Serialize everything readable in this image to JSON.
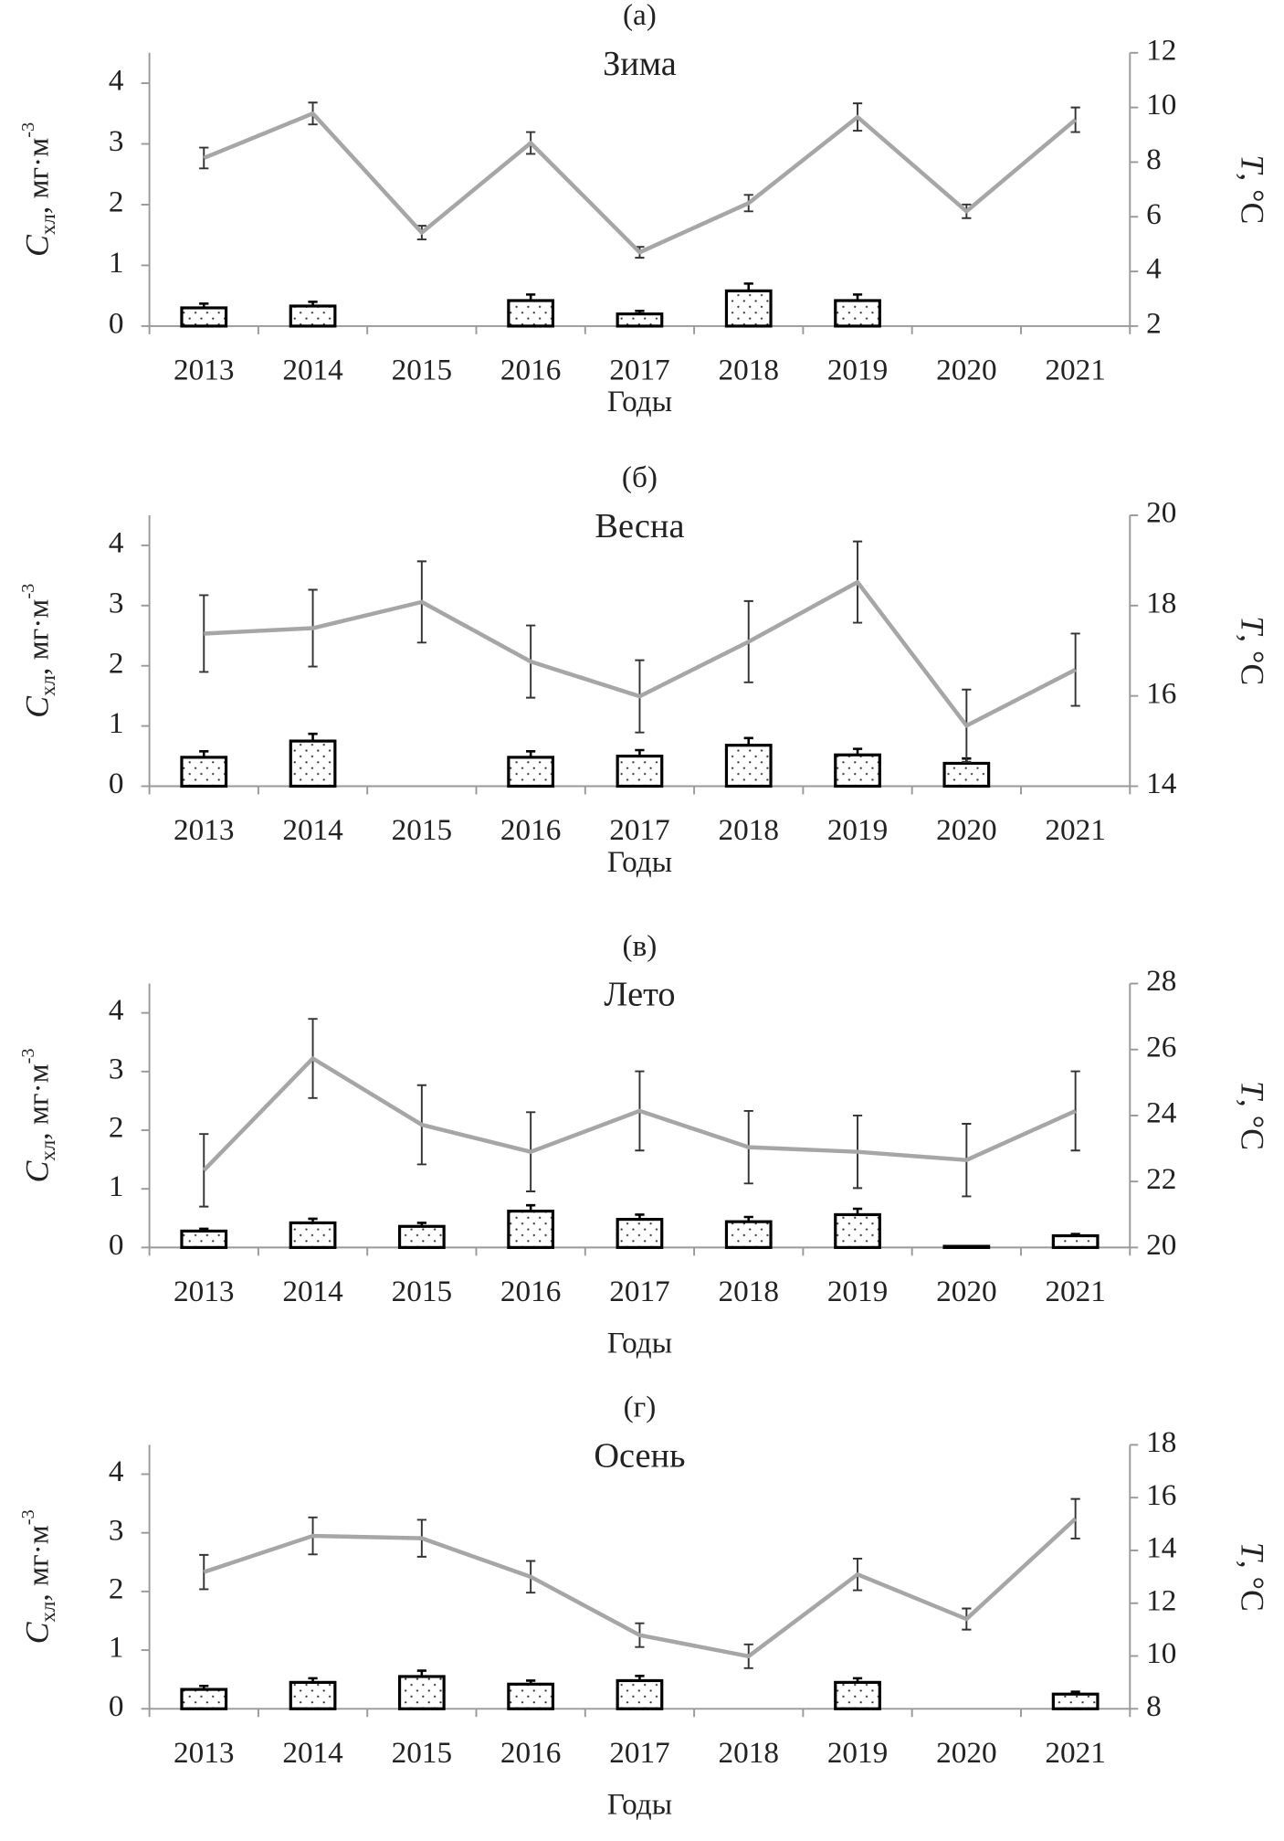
{
  "chart_data": [
    {
      "type": "combo",
      "label": "(а)",
      "title": "Зима",
      "x_label": "Годы",
      "y_label": [
        "C",
        "хл",
        ", мг·м",
        "-3"
      ],
      "y2_label": [
        "T",
        ", °С"
      ],
      "categories": [
        "2013",
        "2014",
        "2015",
        "2016",
        "2017",
        "2018",
        "2019",
        "2020",
        "2021"
      ],
      "ylim": [
        0,
        4.5
      ],
      "yticks": [
        0,
        1,
        2,
        3,
        4
      ],
      "y2lim": [
        2,
        12
      ],
      "y2ticks": [
        2,
        4,
        6,
        8,
        10,
        12
      ],
      "series": [
        {
          "type": "bar",
          "color": "#000000",
          "values": [
            0.3,
            0.33,
            null,
            0.42,
            0.2,
            0.58,
            0.42,
            null,
            null
          ],
          "errors": [
            0.07,
            0.07,
            null,
            0.1,
            0.05,
            0.12,
            0.1,
            null,
            null
          ]
        },
        {
          "type": "line",
          "axis": "y2",
          "color": "#a6a6a6",
          "values": [
            8.15,
            9.78,
            5.42,
            8.7,
            4.7,
            6.5,
            9.65,
            6.2,
            9.55
          ],
          "errors": [
            0.38,
            0.4,
            0.25,
            0.4,
            0.2,
            0.3,
            0.5,
            0.25,
            0.45
          ]
        }
      ]
    },
    {
      "type": "combo",
      "label": "(б)",
      "title": "Весна",
      "x_label": "Годы",
      "y_label": [
        "C",
        "хл",
        ", мг·м",
        "-3"
      ],
      "y2_label": [
        "T",
        ", °С"
      ],
      "categories": [
        "2013",
        "2014",
        "2015",
        "2016",
        "2017",
        "2018",
        "2019",
        "2020",
        "2021"
      ],
      "ylim": [
        0,
        4.5
      ],
      "yticks": [
        0,
        1,
        2,
        3,
        4
      ],
      "y2lim": [
        14,
        20
      ],
      "y2ticks": [
        14,
        16,
        18,
        20
      ],
      "series": [
        {
          "type": "bar",
          "color": "#000000",
          "values": [
            0.48,
            0.75,
            null,
            0.48,
            0.5,
            0.68,
            0.52,
            0.38,
            null
          ],
          "errors": [
            0.1,
            0.12,
            null,
            0.1,
            0.1,
            0.12,
            0.1,
            0.08,
            null
          ]
        },
        {
          "type": "line",
          "axis": "y2",
          "color": "#a6a6a6",
          "values": [
            17.38,
            17.5,
            18.08,
            16.76,
            15.99,
            17.2,
            18.52,
            15.34,
            16.58
          ],
          "errors": [
            0.85,
            0.85,
            0.9,
            0.8,
            0.8,
            0.9,
            0.9,
            0.8,
            0.8
          ]
        }
      ]
    },
    {
      "type": "combo",
      "label": "(в)",
      "title": "Лето",
      "x_label": "Годы",
      "y_label": [
        "C",
        "хл",
        ", мг·м",
        "-3"
      ],
      "y2_label": [
        "T",
        ", °С"
      ],
      "categories": [
        "2013",
        "2014",
        "2015",
        "2016",
        "2017",
        "2018",
        "2019",
        "2020",
        "2021"
      ],
      "ylim": [
        0,
        4.5
      ],
      "yticks": [
        0,
        1,
        2,
        3,
        4
      ],
      "y2lim": [
        20,
        28
      ],
      "y2ticks": [
        20,
        22,
        24,
        26,
        28
      ],
      "series": [
        {
          "type": "bar",
          "color": "#000000",
          "values": [
            0.28,
            0.42,
            0.36,
            0.62,
            0.48,
            0.44,
            0.56,
            0.02,
            0.2
          ],
          "errors": [
            0.04,
            0.07,
            0.06,
            0.1,
            0.08,
            0.08,
            0.1,
            0,
            0.03
          ]
        },
        {
          "type": "line",
          "axis": "y2",
          "color": "#a6a6a6",
          "values": [
            22.34,
            25.73,
            23.72,
            22.9,
            24.14,
            23.04,
            22.9,
            22.65,
            24.14
          ],
          "errors": [
            1.1,
            1.2,
            1.2,
            1.2,
            1.2,
            1.1,
            1.1,
            1.1,
            1.2
          ]
        }
      ]
    },
    {
      "type": "combo",
      "label": "(г)",
      "title": "Осень",
      "x_label": "Годы",
      "y_label": [
        "C",
        "хл",
        ", мг·м",
        "-3"
      ],
      "y2_label": [
        "T",
        ", °С"
      ],
      "categories": [
        "2013",
        "2014",
        "2015",
        "2016",
        "2017",
        "2018",
        "2019",
        "2020",
        "2021"
      ],
      "ylim": [
        0,
        4.5
      ],
      "yticks": [
        0,
        1,
        2,
        3,
        4
      ],
      "y2lim": [
        8,
        18
      ],
      "y2ticks": [
        8,
        10,
        12,
        14,
        16,
        18
      ],
      "series": [
        {
          "type": "bar",
          "color": "#000000",
          "values": [
            0.33,
            0.45,
            0.55,
            0.42,
            0.48,
            null,
            0.45,
            null,
            0.25
          ],
          "errors": [
            0.06,
            0.07,
            0.1,
            0.06,
            0.08,
            null,
            0.07,
            null,
            0.04
          ]
        },
        {
          "type": "line",
          "axis": "y2",
          "color": "#a6a6a6",
          "values": [
            13.18,
            14.55,
            14.46,
            13.0,
            10.79,
            9.99,
            13.09,
            11.4,
            15.2
          ],
          "errors": [
            0.65,
            0.7,
            0.7,
            0.6,
            0.45,
            0.45,
            0.6,
            0.4,
            0.75
          ]
        }
      ]
    }
  ]
}
